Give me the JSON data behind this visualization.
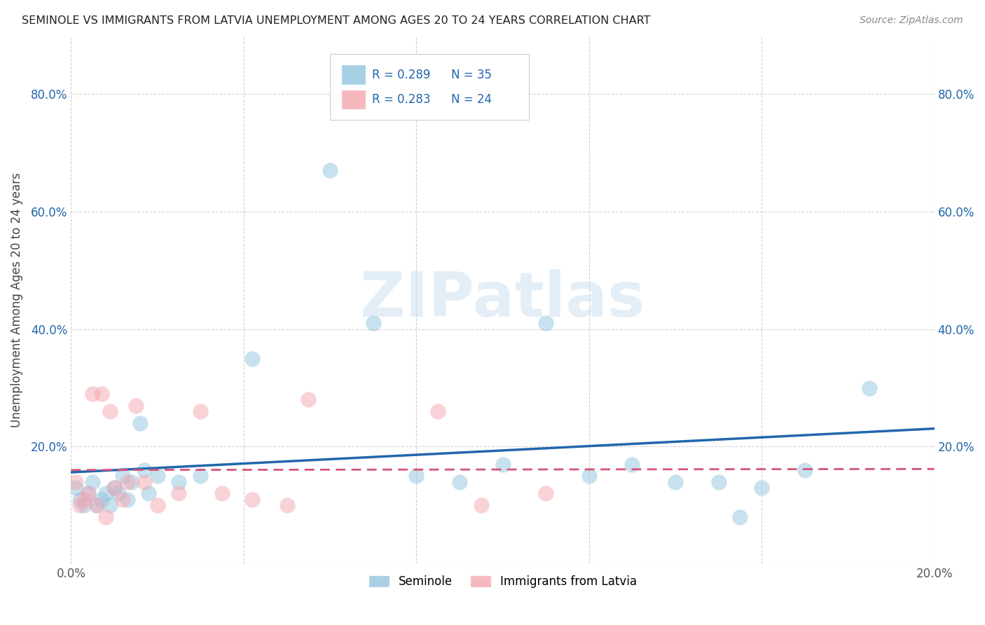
{
  "title": "SEMINOLE VS IMMIGRANTS FROM LATVIA UNEMPLOYMENT AMONG AGES 20 TO 24 YEARS CORRELATION CHART",
  "source": "Source: ZipAtlas.com",
  "ylabel": "Unemployment Among Ages 20 to 24 years",
  "xlim": [
    0.0,
    0.2
  ],
  "ylim": [
    0.0,
    0.9
  ],
  "x_ticks": [
    0.0,
    0.04,
    0.08,
    0.12,
    0.16,
    0.2
  ],
  "y_ticks": [
    0.0,
    0.2,
    0.4,
    0.6,
    0.8
  ],
  "watermark": "ZIPatlas",
  "legend_r1": "0.289",
  "legend_n1": "35",
  "legend_r2": "0.283",
  "legend_n2": "24",
  "seminole_color": "#92c5de",
  "latvia_color": "#f4a6b0",
  "trendline_seminole_color": "#2166ac",
  "trendline_latvia_color": "#d6537a",
  "seminole_x": [
    0.001,
    0.002,
    0.003,
    0.004,
    0.005,
    0.006,
    0.007,
    0.008,
    0.009,
    0.01,
    0.011,
    0.012,
    0.013,
    0.014,
    0.016,
    0.017,
    0.018,
    0.02,
    0.025,
    0.03,
    0.042,
    0.06,
    0.07,
    0.08,
    0.09,
    0.1,
    0.11,
    0.12,
    0.13,
    0.14,
    0.15,
    0.155,
    0.16,
    0.17,
    0.185
  ],
  "seminole_y": [
    0.13,
    0.11,
    0.1,
    0.12,
    0.14,
    0.1,
    0.11,
    0.12,
    0.1,
    0.13,
    0.12,
    0.15,
    0.11,
    0.14,
    0.24,
    0.16,
    0.12,
    0.15,
    0.14,
    0.15,
    0.35,
    0.67,
    0.41,
    0.15,
    0.14,
    0.17,
    0.41,
    0.15,
    0.17,
    0.14,
    0.14,
    0.08,
    0.13,
    0.16,
    0.3
  ],
  "latvia_x": [
    0.001,
    0.002,
    0.003,
    0.004,
    0.005,
    0.006,
    0.007,
    0.008,
    0.009,
    0.01,
    0.012,
    0.013,
    0.015,
    0.017,
    0.02,
    0.025,
    0.03,
    0.035,
    0.042,
    0.05,
    0.055,
    0.085,
    0.095,
    0.11
  ],
  "latvia_y": [
    0.14,
    0.1,
    0.11,
    0.12,
    0.29,
    0.1,
    0.29,
    0.08,
    0.26,
    0.13,
    0.11,
    0.14,
    0.27,
    0.14,
    0.1,
    0.12,
    0.26,
    0.12,
    0.11,
    0.1,
    0.28,
    0.26,
    0.1,
    0.12
  ]
}
